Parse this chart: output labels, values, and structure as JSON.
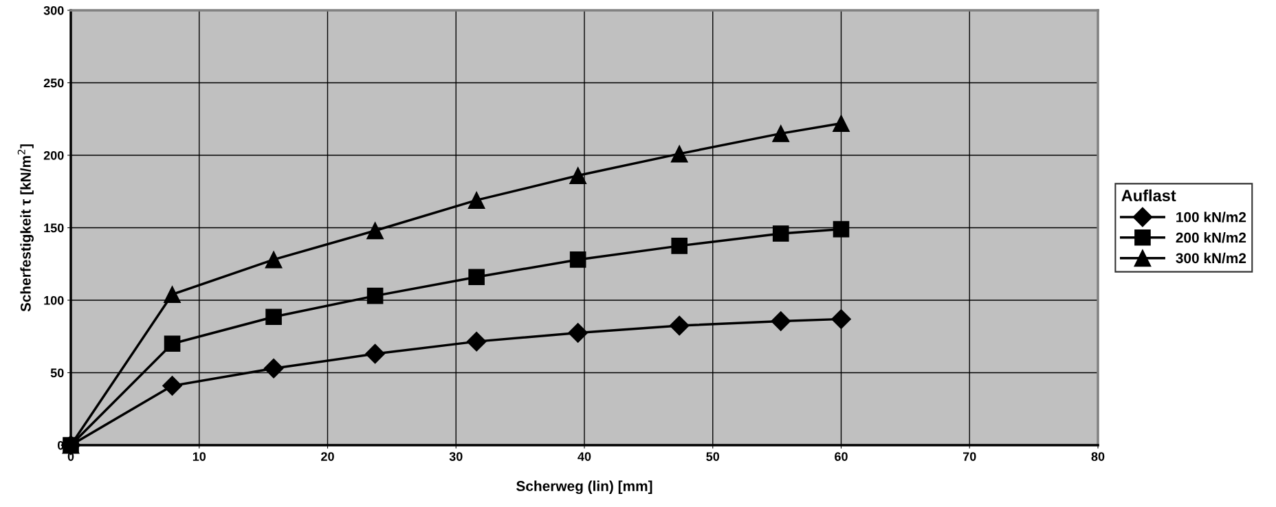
{
  "chart_data": {
    "type": "line",
    "xlabel": "Scherweg (lin) [mm]",
    "ylabel": "Scherfestigkeit τ [kN/m$^{2}$]",
    "legend_title": "Auflast",
    "x": [
      0,
      7.9,
      15.8,
      23.7,
      31.6,
      39.5,
      47.4,
      55.3,
      60
    ],
    "series": [
      {
        "name": "100 kN/m2",
        "color": "#000000",
        "marker": "diamond",
        "values": [
          0,
          41,
          53,
          63,
          71.5,
          77.5,
          82.5,
          85.5,
          87
        ]
      },
      {
        "name": "200 kN/m2",
        "color": "#000000",
        "marker": "square",
        "values": [
          0,
          70,
          88.5,
          103,
          116,
          128,
          137.5,
          146,
          149
        ]
      },
      {
        "name": "300 kN/m2",
        "color": "#000000",
        "marker": "triangle",
        "values": [
          0,
          104,
          128,
          148,
          169,
          186,
          201,
          215,
          222
        ]
      }
    ],
    "xlim": [
      0,
      80
    ],
    "xticks": [
      0,
      10,
      20,
      30,
      40,
      50,
      60,
      70,
      80
    ],
    "ylim": [
      0,
      300
    ],
    "yticks": [
      0,
      50,
      100,
      150,
      200,
      250,
      300
    ],
    "grid": true,
    "legend": "right",
    "line_style": "solid"
  }
}
